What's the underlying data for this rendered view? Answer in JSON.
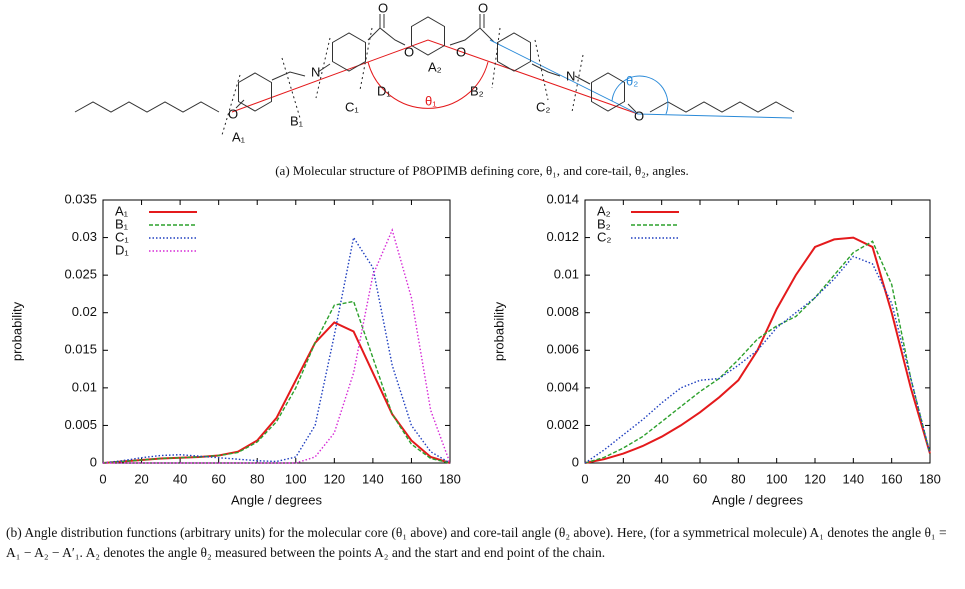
{
  "diagram": {
    "oxygen": "O",
    "nitrogen": "N",
    "a1": "A₁",
    "b1": "B₁",
    "c1": "C₁",
    "d1": "D₁",
    "theta1": "θ₁",
    "a2": "A₂",
    "b2": "B₂",
    "c2": "C₂",
    "theta2": "θ₂"
  },
  "caption_a": "(a) Molecular structure of P8OPIMB defining core, θ₁, and core-tail, θ₂, angles.",
  "caption_b": "(b) Angle distribution functions (arbitrary units) for the molecular core (θ₁ above) and core-tail angle (θ₂ above). Here, (for a symmetrical molecule) A₁ denotes the angle θ₁ = A₁ − A₂ − A′₁. A₂ denotes the angle θ₂ measured between the points A₂ and the start and end point of the chain.",
  "chart_data": [
    {
      "type": "line",
      "x_label": "Angle / degrees",
      "y_label": "probability",
      "x": [
        0,
        10,
        20,
        30,
        40,
        50,
        60,
        70,
        80,
        90,
        100,
        110,
        120,
        130,
        140,
        150,
        160,
        170,
        180
      ],
      "xlim": [
        0,
        180
      ],
      "xticks": [
        0,
        20,
        40,
        60,
        80,
        100,
        120,
        140,
        160,
        180
      ],
      "ylim": [
        0,
        0.035
      ],
      "yticks": [
        0,
        0.005,
        0.01,
        0.015,
        0.02,
        0.025,
        0.03,
        0.035
      ],
      "legend": "top-left",
      "series": [
        {
          "name": "A₁",
          "color": "#e41a1c",
          "style": "solid",
          "values": [
            0,
            0.0002,
            0.0004,
            0.0006,
            0.0007,
            0.0008,
            0.001,
            0.0015,
            0.003,
            0.006,
            0.011,
            0.016,
            0.0187,
            0.0175,
            0.012,
            0.0065,
            0.003,
            0.0008,
            0
          ]
        },
        {
          "name": "B₁",
          "color": "#2ca02c",
          "style": "dashed",
          "values": [
            0,
            0.0002,
            0.0004,
            0.0006,
            0.0007,
            0.0008,
            0.001,
            0.0014,
            0.0028,
            0.0055,
            0.01,
            0.016,
            0.021,
            0.0215,
            0.014,
            0.0065,
            0.0025,
            0.0006,
            0
          ]
        },
        {
          "name": "C₁",
          "color": "#1f3fbf",
          "style": "dotted",
          "values": [
            0,
            0.0003,
            0.0007,
            0.001,
            0.0011,
            0.0009,
            0.0007,
            0.0005,
            0.0003,
            0.0002,
            0.0008,
            0.005,
            0.017,
            0.03,
            0.026,
            0.013,
            0.005,
            0.0015,
            0
          ]
        },
        {
          "name": "D₁",
          "color": "#d62ad6",
          "style": "dotted",
          "values": [
            0,
            0,
            0,
            0,
            0,
            0,
            0,
            0,
            0,
            0,
            0,
            0.0008,
            0.004,
            0.012,
            0.025,
            0.031,
            0.022,
            0.007,
            0
          ]
        }
      ]
    },
    {
      "type": "line",
      "x_label": "Angle / degrees",
      "y_label": "probability",
      "x": [
        0,
        10,
        20,
        30,
        40,
        50,
        60,
        70,
        80,
        90,
        100,
        110,
        120,
        130,
        140,
        150,
        160,
        170,
        180
      ],
      "xlim": [
        0,
        180
      ],
      "xticks": [
        0,
        20,
        40,
        60,
        80,
        100,
        120,
        140,
        160,
        180
      ],
      "ylim": [
        0,
        0.014
      ],
      "yticks": [
        0,
        0.002,
        0.004,
        0.006,
        0.008,
        0.01,
        0.012,
        0.014
      ],
      "legend": "top-left",
      "series": [
        {
          "name": "A₂",
          "color": "#e41a1c",
          "style": "solid",
          "values": [
            0,
            0.0002,
            0.0005,
            0.0009,
            0.0014,
            0.002,
            0.0027,
            0.0035,
            0.0044,
            0.006,
            0.0082,
            0.01,
            0.0115,
            0.0119,
            0.012,
            0.0115,
            0.008,
            0.004,
            0.0005
          ]
        },
        {
          "name": "B₂",
          "color": "#2ca02c",
          "style": "dashed",
          "values": [
            0,
            0.0003,
            0.0008,
            0.0014,
            0.0022,
            0.003,
            0.0038,
            0.0045,
            0.0055,
            0.0066,
            0.0073,
            0.0078,
            0.0088,
            0.01,
            0.0112,
            0.0118,
            0.0095,
            0.0045,
            0.0005
          ]
        },
        {
          "name": "C₂",
          "color": "#1f3fbf",
          "style": "dotted",
          "values": [
            0,
            0.0007,
            0.0015,
            0.0023,
            0.0032,
            0.004,
            0.0044,
            0.0045,
            0.0052,
            0.006,
            0.0072,
            0.008,
            0.0088,
            0.0098,
            0.011,
            0.0106,
            0.0085,
            0.0045,
            0.0005
          ]
        }
      ]
    }
  ]
}
